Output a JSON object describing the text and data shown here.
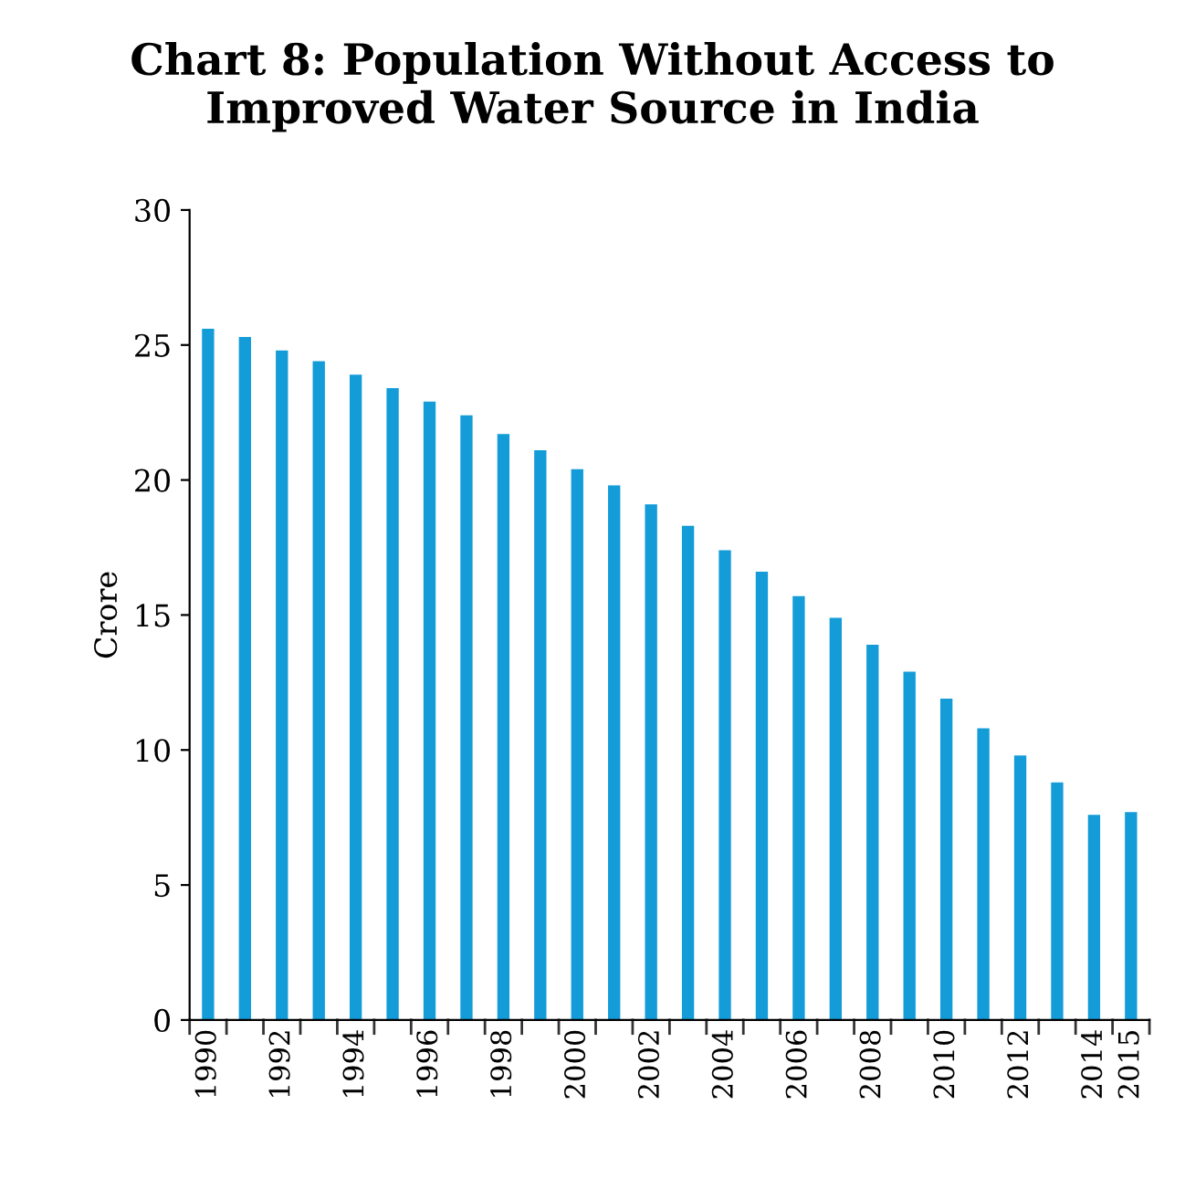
{
  "chart_data": {
    "type": "bar",
    "title": "Chart 8: Population Without Access to\nImproved Water Source in India",
    "ylabel": "Crore",
    "categories": [
      "1990",
      null,
      "1992",
      null,
      "1994",
      null,
      "1996",
      null,
      "1998",
      null,
      "2000",
      null,
      "2002",
      null,
      "2004",
      null,
      "2006",
      null,
      "2008",
      null,
      "2010",
      null,
      "2012",
      null,
      "2014",
      "2015"
    ],
    "values": [
      25.6,
      25.3,
      24.8,
      24.4,
      23.9,
      23.4,
      22.9,
      22.4,
      21.7,
      21.1,
      20.4,
      19.8,
      19.1,
      18.3,
      17.4,
      16.6,
      15.7,
      14.9,
      13.9,
      12.9,
      11.9,
      10.8,
      9.8,
      8.8,
      7.6,
      7.7
    ],
    "color": "#139cd8",
    "ylim": [
      0,
      30
    ],
    "yticks": [
      0,
      5,
      10,
      15,
      20,
      25,
      30
    ],
    "grid": false
  }
}
